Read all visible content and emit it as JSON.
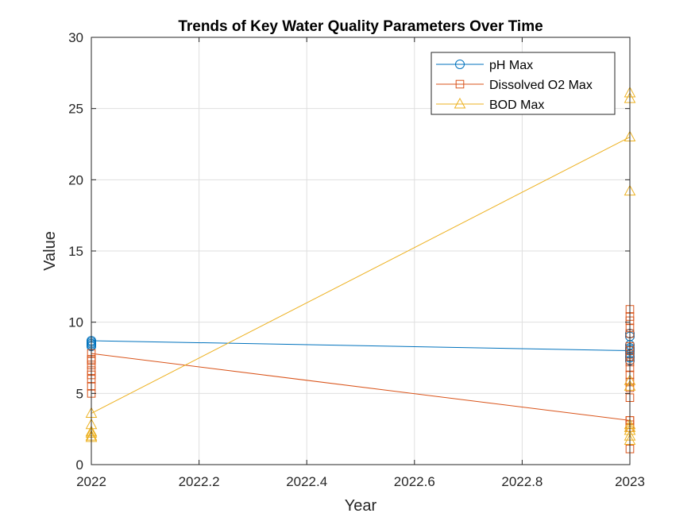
{
  "chart_data": {
    "type": "line",
    "title": "Trends of Key Water Quality Parameters Over Time",
    "xlabel": "Year",
    "ylabel": "Value",
    "xlim": [
      2022,
      2023
    ],
    "ylim": [
      0,
      30
    ],
    "xticks": [
      2022,
      2022.2,
      2022.4,
      2022.6,
      2022.8,
      2023
    ],
    "xtick_labels": [
      "2022",
      "2022.2",
      "2022.4",
      "2022.6",
      "2022.8",
      "2023"
    ],
    "yticks": [
      0,
      5,
      10,
      15,
      20,
      25,
      30
    ],
    "ytick_labels": [
      "0",
      "5",
      "10",
      "15",
      "20",
      "25",
      "30"
    ],
    "grid": true,
    "legend_position": "top-right",
    "series": [
      {
        "name": "pH Max",
        "color": "#0072BD",
        "marker": "circle",
        "x": [
          2022,
          2022,
          2022,
          2022,
          2022,
          2023,
          2023,
          2023,
          2023,
          2023,
          2023,
          2023,
          2023,
          2023,
          2023,
          2023,
          2023
        ],
        "y": [
          8.3,
          8.4,
          8.5,
          8.6,
          8.7,
          8.0,
          7.3,
          7.5,
          7.6,
          7.8,
          8.0,
          8.1,
          8.2,
          8.4,
          9.0,
          9.2,
          8.0
        ]
      },
      {
        "name": "Dissolved O2 Max",
        "color": "#D95319",
        "marker": "square",
        "x": [
          2022,
          2022,
          2022,
          2022,
          2022,
          2022,
          2022,
          2022,
          2022,
          2023,
          2023,
          2023,
          2023,
          2023,
          2023,
          2023,
          2023,
          2023,
          2023,
          2023,
          2023,
          2023,
          2023,
          2023,
          2023,
          2023,
          2023,
          2023
        ],
        "y": [
          7.3,
          5.0,
          5.5,
          6.0,
          6.3,
          6.6,
          7.0,
          7.4,
          7.8,
          3.1,
          1.1,
          2.6,
          2.8,
          4.7,
          5.4,
          5.8,
          6.3,
          6.8,
          7.2,
          7.6,
          8.0,
          8.3,
          9.2,
          9.6,
          10.1,
          10.4,
          10.9,
          3.1
        ]
      },
      {
        "name": "BOD Max",
        "color": "#EDB120",
        "marker": "triangle",
        "x": [
          2022,
          2022,
          2022,
          2022,
          2022,
          2022,
          2023,
          2023,
          2023,
          2023,
          2023,
          2023,
          2023,
          2023,
          2023,
          2023,
          2023
        ],
        "y": [
          2.2,
          1.9,
          2.0,
          2.3,
          2.8,
          3.6,
          23.0,
          26.1,
          25.7,
          19.2,
          5.5,
          5.9,
          2.8,
          2.4,
          2.0,
          1.7,
          2.6
        ]
      }
    ]
  }
}
